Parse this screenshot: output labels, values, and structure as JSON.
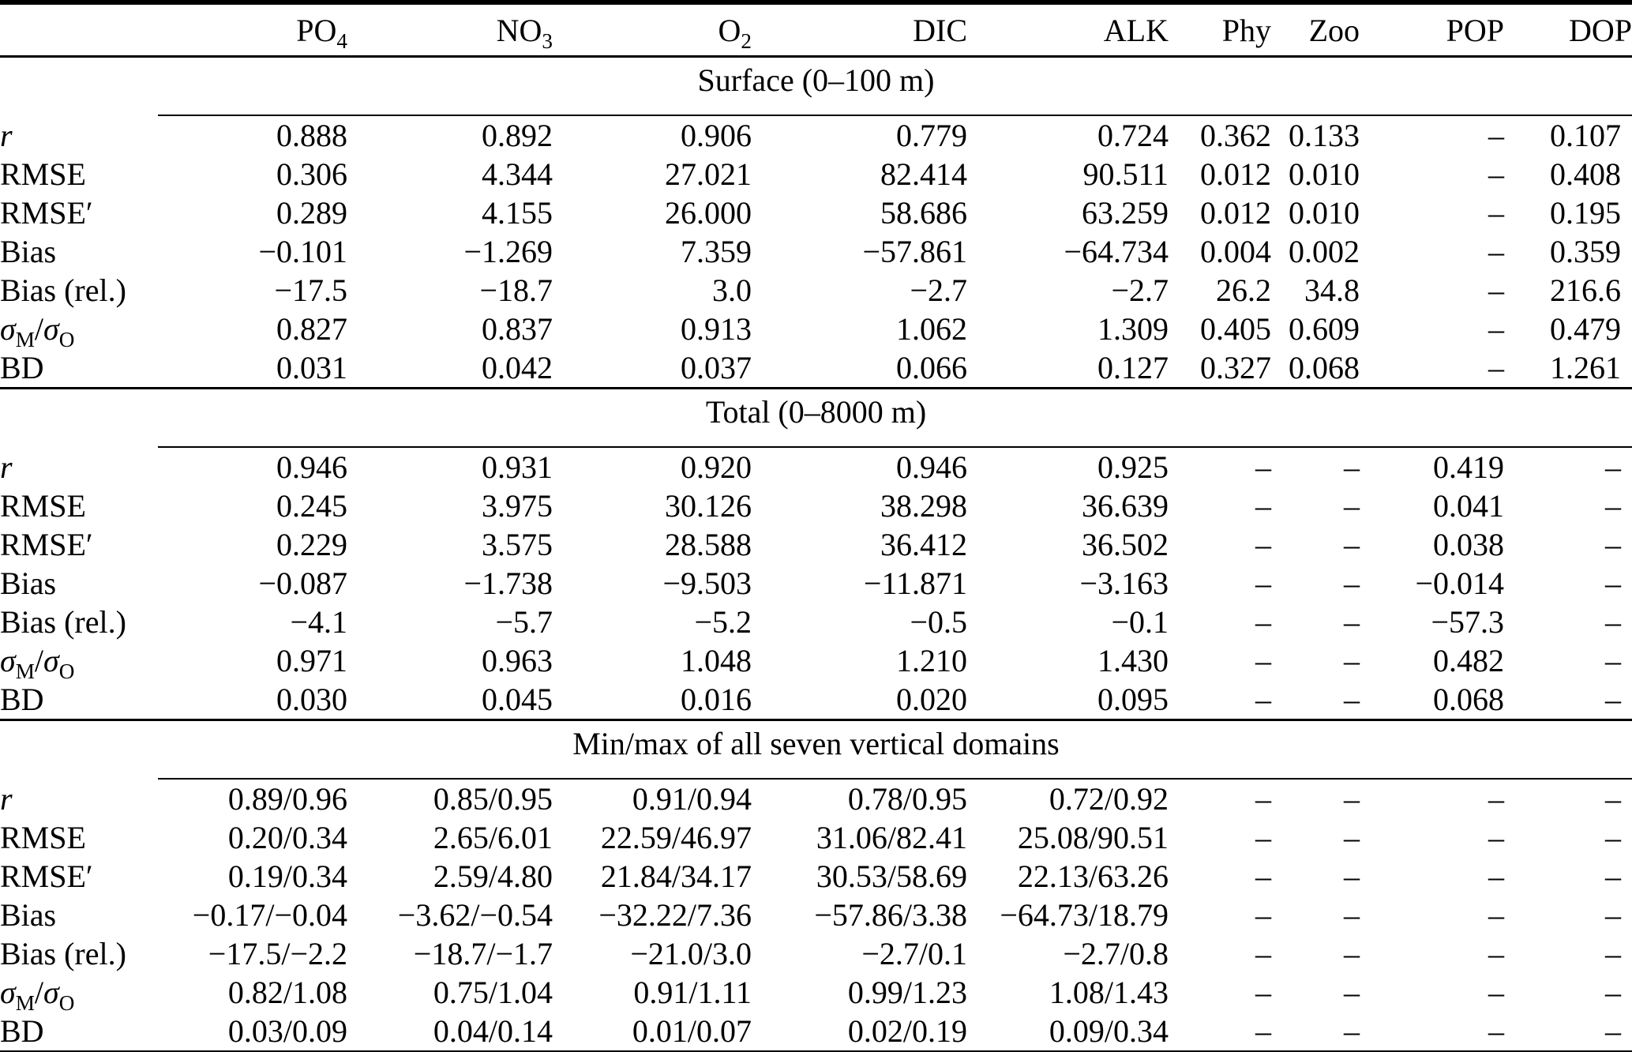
{
  "table": {
    "corner_label": "",
    "headers": [
      {
        "name": "po4",
        "parts": [
          {
            "t": "PO"
          },
          {
            "t": "4",
            "sub": true
          }
        ]
      },
      {
        "name": "no3",
        "parts": [
          {
            "t": "NO"
          },
          {
            "t": "3",
            "sub": true
          }
        ]
      },
      {
        "name": "o2",
        "parts": [
          {
            "t": "O"
          },
          {
            "t": "2",
            "sub": true
          }
        ]
      },
      {
        "name": "dic",
        "parts": [
          {
            "t": "DIC"
          }
        ]
      },
      {
        "name": "alk",
        "parts": [
          {
            "t": "ALK"
          }
        ]
      },
      {
        "name": "phy",
        "parts": [
          {
            "t": "Phy"
          }
        ]
      },
      {
        "name": "zoo",
        "parts": [
          {
            "t": "Zoo"
          }
        ]
      },
      {
        "name": "pop",
        "parts": [
          {
            "t": "POP"
          }
        ]
      },
      {
        "name": "dop",
        "parts": [
          {
            "t": "DOP"
          }
        ]
      }
    ],
    "sections": [
      {
        "title": "Surface (0–100 m)",
        "rows": [
          {
            "label": "r",
            "italic": true,
            "values": [
              "0.888",
              "0.892",
              "0.906",
              "0.779",
              "0.724",
              "0.362",
              "0.133",
              "–",
              "0.107"
            ]
          },
          {
            "label": "RMSE",
            "values": [
              "0.306",
              "4.344",
              "27.021",
              "82.414",
              "90.511",
              "0.012",
              "0.010",
              "–",
              "0.408"
            ]
          },
          {
            "label": "RMSE′",
            "values": [
              "0.289",
              "4.155",
              "26.000",
              "58.686",
              "63.259",
              "0.012",
              "0.010",
              "–",
              "0.195"
            ]
          },
          {
            "label": "Bias",
            "values": [
              "−0.101",
              "−1.269",
              "7.359",
              "−57.861",
              "−64.734",
              "0.004",
              "0.002",
              "–",
              "0.359"
            ]
          },
          {
            "label": "Bias (rel.)",
            "values": [
              "−17.5",
              "−18.7",
              "3.0",
              "−2.7",
              "−2.7",
              "26.2",
              "34.8",
              "–",
              "216.6"
            ]
          },
          {
            "label": "σM/σO",
            "label_parts": [
              {
                "t": "σ",
                "i": true
              },
              {
                "t": "M",
                "sub": true
              },
              {
                "t": "/"
              },
              {
                "t": "σ",
                "i": true
              },
              {
                "t": "O",
                "sub": true
              }
            ],
            "values": [
              "0.827",
              "0.837",
              "0.913",
              "1.062",
              "1.309",
              "0.405",
              "0.609",
              "–",
              "0.479"
            ]
          },
          {
            "label": "BD",
            "values": [
              "0.031",
              "0.042",
              "0.037",
              "0.066",
              "0.127",
              "0.327",
              "0.068",
              "–",
              "1.261"
            ]
          }
        ]
      },
      {
        "title": "Total (0–8000 m)",
        "rows": [
          {
            "label": "r",
            "italic": true,
            "values": [
              "0.946",
              "0.931",
              "0.920",
              "0.946",
              "0.925",
              "–",
              "–",
              "0.419",
              "–"
            ]
          },
          {
            "label": "RMSE",
            "values": [
              "0.245",
              "3.975",
              "30.126",
              "38.298",
              "36.639",
              "–",
              "–",
              "0.041",
              "–"
            ]
          },
          {
            "label": "RMSE′",
            "values": [
              "0.229",
              "3.575",
              "28.588",
              "36.412",
              "36.502",
              "–",
              "–",
              "0.038",
              "–"
            ]
          },
          {
            "label": "Bias",
            "values": [
              "−0.087",
              "−1.738",
              "−9.503",
              "−11.871",
              "−3.163",
              "–",
              "–",
              "−0.014",
              "–"
            ]
          },
          {
            "label": "Bias (rel.)",
            "values": [
              "−4.1",
              "−5.7",
              "−5.2",
              "−0.5",
              "−0.1",
              "–",
              "–",
              "−57.3",
              "–"
            ]
          },
          {
            "label": "σM/σO",
            "label_parts": [
              {
                "t": "σ",
                "i": true
              },
              {
                "t": "M",
                "sub": true
              },
              {
                "t": "/"
              },
              {
                "t": "σ",
                "i": true
              },
              {
                "t": "O",
                "sub": true
              }
            ],
            "values": [
              "0.971",
              "0.963",
              "1.048",
              "1.210",
              "1.430",
              "–",
              "–",
              "0.482",
              "–"
            ]
          },
          {
            "label": "BD",
            "values": [
              "0.030",
              "0.045",
              "0.016",
              "0.020",
              "0.095",
              "–",
              "–",
              "0.068",
              "–"
            ]
          }
        ]
      },
      {
        "title": "Min/max of all seven vertical domains",
        "rows": [
          {
            "label": "r",
            "italic": true,
            "values": [
              "0.89/0.96",
              "0.85/0.95",
              "0.91/0.94",
              "0.78/0.95",
              "0.72/0.92",
              "–",
              "–",
              "–",
              "–"
            ]
          },
          {
            "label": "RMSE",
            "values": [
              "0.20/0.34",
              "2.65/6.01",
              "22.59/46.97",
              "31.06/82.41",
              "25.08/90.51",
              "–",
              "–",
              "–",
              "–"
            ]
          },
          {
            "label": "RMSE′",
            "values": [
              "0.19/0.34",
              "2.59/4.80",
              "21.84/34.17",
              "30.53/58.69",
              "22.13/63.26",
              "–",
              "–",
              "–",
              "–"
            ]
          },
          {
            "label": "Bias",
            "values": [
              "−0.17/−0.04",
              "−3.62/−0.54",
              "−32.22/7.36",
              "−57.86/3.38",
              "−64.73/18.79",
              "–",
              "–",
              "–",
              "–"
            ]
          },
          {
            "label": "Bias (rel.)",
            "values": [
              "−17.5/−2.2",
              "−18.7/−1.7",
              "−21.0/3.0",
              "−2.7/0.1",
              "−2.7/0.8",
              "–",
              "–",
              "–",
              "–"
            ]
          },
          {
            "label": "σM/σO",
            "label_parts": [
              {
                "t": "σ",
                "i": true
              },
              {
                "t": "M",
                "sub": true
              },
              {
                "t": "/"
              },
              {
                "t": "σ",
                "i": true
              },
              {
                "t": "O",
                "sub": true
              }
            ],
            "values": [
              "0.82/1.08",
              "0.75/1.04",
              "0.91/1.11",
              "0.99/1.23",
              "1.08/1.43",
              "–",
              "–",
              "–",
              "–"
            ]
          },
          {
            "label": "BD",
            "values": [
              "0.03/0.09",
              "0.04/0.14",
              "0.01/0.07",
              "0.02/0.19",
              "0.09/0.34",
              "–",
              "–",
              "–",
              "–"
            ]
          }
        ]
      }
    ]
  }
}
